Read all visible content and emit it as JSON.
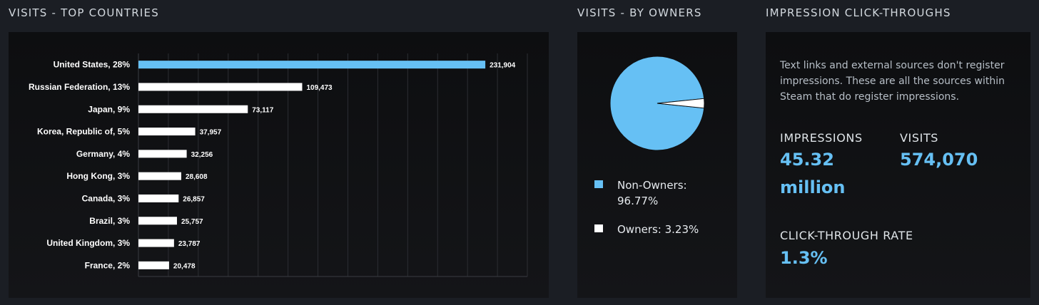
{
  "sections": {
    "countries_title": "VISITS - TOP COUNTRIES",
    "owners_title": "VISITS - BY OWNERS",
    "impressions_title": "IMPRESSION CLICK-THROUGHS"
  },
  "colors": {
    "accent_blue": "#66c0f4",
    "bar_white": "#ffffff",
    "panel_bg": "#0e0f11",
    "page_bg": "#1b1e24"
  },
  "chart_data": [
    {
      "type": "bar",
      "orientation": "horizontal",
      "title": "VISITS - TOP COUNTRIES",
      "categories": [
        "United States, 28%",
        "Russian Federation, 13%",
        "Japan, 9%",
        "Korea, Republic of, 5%",
        "Germany, 4%",
        "Hong Kong, 3%",
        "Canada, 3%",
        "Brazil, 3%",
        "United Kingdom, 3%",
        "France, 2%"
      ],
      "values": [
        231904,
        109473,
        73117,
        37957,
        32256,
        28608,
        26857,
        25757,
        23787,
        20478
      ],
      "value_labels": [
        "231,904",
        "109,473",
        "73,117",
        "37,957",
        "32,256",
        "28,608",
        "26,857",
        "25,757",
        "23,787",
        "20,478"
      ],
      "xlim": [
        0,
        260000
      ],
      "grid": true,
      "highlight_color": "#66c0f4",
      "bar_color": "#ffffff"
    },
    {
      "type": "pie",
      "title": "VISITS - BY OWNERS",
      "labels": [
        "Non-Owners",
        "Owners"
      ],
      "values": [
        96.77,
        3.23
      ],
      "colors": [
        "#66c0f4",
        "#ffffff"
      ],
      "legend_placement": "bottom",
      "legend": [
        {
          "line1": "Non-Owners:",
          "line2": "96.77%",
          "color": "#66c0f4"
        },
        {
          "line1": "Owners: 3.23%",
          "line2": "",
          "color": "#ffffff"
        }
      ]
    }
  ],
  "impressions": {
    "description": "Text links and external sources don't register impressions. These are all the sources within Steam that do register impressions.",
    "impressions_label": "IMPRESSIONS",
    "impressions_value_line1": "45.32",
    "impressions_value_line2": "million",
    "visits_label": "VISITS",
    "visits_value": "574,070",
    "ctr_label": "CLICK-THROUGH RATE",
    "ctr_value": "1.3%"
  }
}
